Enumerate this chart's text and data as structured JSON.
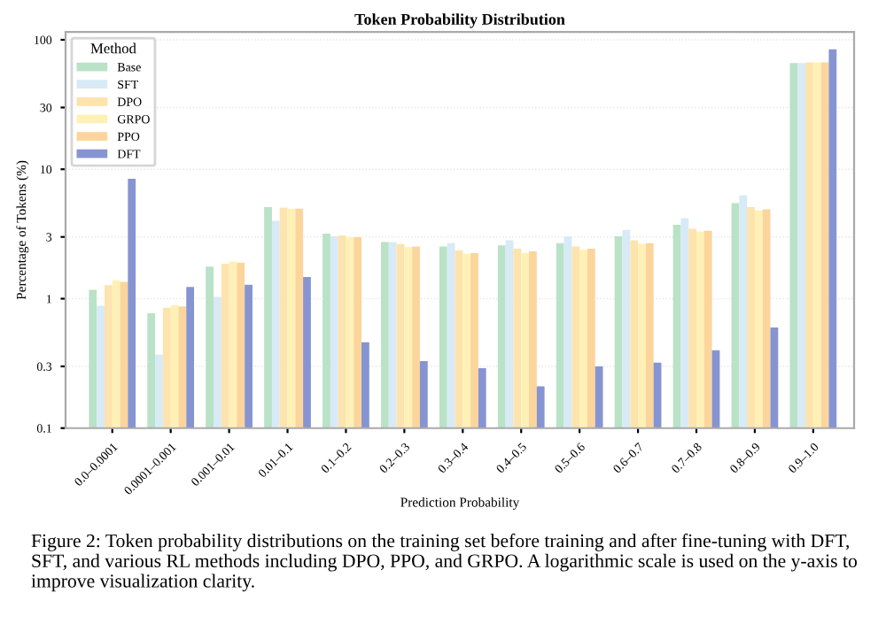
{
  "chart_data": {
    "type": "bar",
    "title": "Token Probability Distribution",
    "xlabel": "Prediction Probability",
    "ylabel": "Percentage of Tokens (%)",
    "legend_title": "Method",
    "categories": [
      "0.0–0.0001",
      "0.0001–0.001",
      "0.001–0.01",
      "0.01–0.1",
      "0.1–0.2",
      "0.2–0.3",
      "0.3–0.4",
      "0.4–0.5",
      "0.5–0.6",
      "0.6–0.7",
      "0.7–0.8",
      "0.8–0.9",
      "0.9–1.0"
    ],
    "series": [
      {
        "name": "Base",
        "color": "#b9e2c6",
        "values": [
          1.17,
          0.77,
          1.77,
          5.1,
          3.18,
          2.74,
          2.53,
          2.58,
          2.69,
          3.03,
          3.72,
          5.47,
          66
        ]
      },
      {
        "name": "SFT",
        "color": "#d7eaf6",
        "values": [
          0.88,
          0.37,
          1.03,
          4.0,
          3.03,
          2.74,
          2.69,
          2.83,
          3.03,
          3.4,
          4.19,
          6.28,
          66
        ]
      },
      {
        "name": "DPO",
        "color": "#fde3ad",
        "values": [
          1.27,
          0.85,
          1.86,
          5.06,
          3.08,
          2.64,
          2.36,
          2.43,
          2.53,
          2.83,
          3.47,
          5.1,
          67
        ]
      },
      {
        "name": "GRPO",
        "color": "#fff1b5",
        "values": [
          1.39,
          0.89,
          1.94,
          4.96,
          2.99,
          2.51,
          2.23,
          2.25,
          2.39,
          2.66,
          3.31,
          4.81,
          67
        ]
      },
      {
        "name": "PPO",
        "color": "#fbd59c",
        "values": [
          1.35,
          0.87,
          1.9,
          4.96,
          2.99,
          2.53,
          2.25,
          2.32,
          2.43,
          2.69,
          3.35,
          4.91,
          67
        ]
      },
      {
        "name": "DFT",
        "color": "#8794d2",
        "values": [
          8.45,
          1.23,
          1.28,
          1.47,
          0.46,
          0.33,
          0.29,
          0.21,
          0.3,
          0.32,
          0.4,
          0.6,
          84.5
        ]
      }
    ],
    "log": "y",
    "ylim": [
      0.1,
      115
    ],
    "yticks": [
      0.1,
      0.3,
      1,
      3,
      10,
      30,
      100
    ],
    "grid": "y",
    "legend": "top left",
    "annotations": [
      "Figure 2: Token probability distributions on the training set before training and after fine-tuning with DFT, SFT, and various RL methods including DPO, PPO, and GRPO. A logarithmic scale is used on the y-axis to improve visualization clarity."
    ]
  }
}
